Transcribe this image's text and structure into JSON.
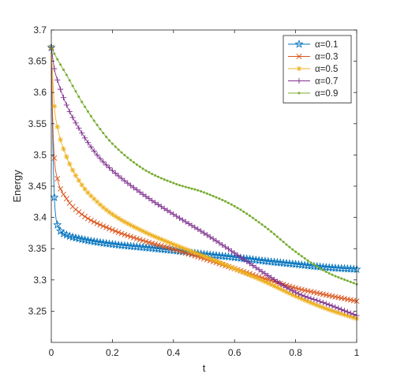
{
  "chart_data": {
    "type": "line",
    "xlabel": "t",
    "ylabel": "Energy",
    "xlim": [
      0,
      1
    ],
    "ylim": [
      3.2,
      3.7
    ],
    "xticks": [
      0,
      0.2,
      0.4,
      0.6,
      0.8,
      1
    ],
    "xtick_labels": [
      "0",
      "0.2",
      "0.4",
      "0.6",
      "0.8",
      "1"
    ],
    "yticks": [
      3.25,
      3.3,
      3.35,
      3.4,
      3.45,
      3.5,
      3.55,
      3.6,
      3.65,
      3.7
    ],
    "ytick_labels": [
      "3.25",
      "3.3",
      "3.35",
      "3.4",
      "3.45",
      "3.5",
      "3.55",
      "3.6",
      "3.65",
      "3.7"
    ],
    "grid": false,
    "legend_position": "top-right",
    "legend_prefix": "α=",
    "series": [
      {
        "name": "0.1",
        "color": "#0072BD",
        "marker": "pentagram",
        "points": [
          [
            0,
            3.672
          ],
          [
            0.005,
            3.52
          ],
          [
            0.01,
            3.432
          ],
          [
            0.015,
            3.4
          ],
          [
            0.02,
            3.388
          ],
          [
            0.03,
            3.378
          ],
          [
            0.05,
            3.372
          ],
          [
            0.1,
            3.365
          ],
          [
            0.2,
            3.357
          ],
          [
            0.3,
            3.352
          ],
          [
            0.4,
            3.347
          ],
          [
            0.5,
            3.341
          ],
          [
            0.6,
            3.336
          ],
          [
            0.7,
            3.33
          ],
          [
            0.8,
            3.325
          ],
          [
            0.9,
            3.32
          ],
          [
            1.0,
            3.317
          ]
        ]
      },
      {
        "name": "0.3",
        "color": "#D95319",
        "marker": "x",
        "points": [
          [
            0,
            3.672
          ],
          [
            0.005,
            3.55
          ],
          [
            0.01,
            3.495
          ],
          [
            0.02,
            3.462
          ],
          [
            0.05,
            3.43
          ],
          [
            0.1,
            3.405
          ],
          [
            0.2,
            3.38
          ],
          [
            0.3,
            3.363
          ],
          [
            0.4,
            3.349
          ],
          [
            0.5,
            3.334
          ],
          [
            0.6,
            3.318
          ],
          [
            0.7,
            3.302
          ],
          [
            0.8,
            3.287
          ],
          [
            0.9,
            3.276
          ],
          [
            1.0,
            3.266
          ]
        ]
      },
      {
        "name": "0.5",
        "color": "#EDB120",
        "marker": "asterisk",
        "points": [
          [
            0,
            3.672
          ],
          [
            0.01,
            3.578
          ],
          [
            0.02,
            3.545
          ],
          [
            0.05,
            3.497
          ],
          [
            0.1,
            3.452
          ],
          [
            0.15,
            3.425
          ],
          [
            0.2,
            3.405
          ],
          [
            0.3,
            3.378
          ],
          [
            0.4,
            3.357
          ],
          [
            0.5,
            3.338
          ],
          [
            0.6,
            3.318
          ],
          [
            0.7,
            3.297
          ],
          [
            0.8,
            3.274
          ],
          [
            0.9,
            3.254
          ],
          [
            1.0,
            3.238
          ]
        ]
      },
      {
        "name": "0.7",
        "color": "#7E2F8E",
        "marker": "plus",
        "points": [
          [
            0,
            3.672
          ],
          [
            0.01,
            3.638
          ],
          [
            0.02,
            3.62
          ],
          [
            0.05,
            3.58
          ],
          [
            0.1,
            3.535
          ],
          [
            0.15,
            3.5
          ],
          [
            0.2,
            3.475
          ],
          [
            0.3,
            3.437
          ],
          [
            0.4,
            3.405
          ],
          [
            0.5,
            3.375
          ],
          [
            0.6,
            3.343
          ],
          [
            0.7,
            3.31
          ],
          [
            0.8,
            3.28
          ],
          [
            0.9,
            3.262
          ],
          [
            1.0,
            3.243
          ]
        ]
      },
      {
        "name": "0.9",
        "color": "#77AC30",
        "marker": "point",
        "points": [
          [
            0,
            3.672
          ],
          [
            0.01,
            3.662
          ],
          [
            0.05,
            3.628
          ],
          [
            0.1,
            3.585
          ],
          [
            0.15,
            3.548
          ],
          [
            0.2,
            3.518
          ],
          [
            0.3,
            3.478
          ],
          [
            0.4,
            3.455
          ],
          [
            0.5,
            3.44
          ],
          [
            0.6,
            3.418
          ],
          [
            0.7,
            3.385
          ],
          [
            0.8,
            3.345
          ],
          [
            0.9,
            3.313
          ],
          [
            1.0,
            3.293
          ]
        ]
      }
    ]
  }
}
